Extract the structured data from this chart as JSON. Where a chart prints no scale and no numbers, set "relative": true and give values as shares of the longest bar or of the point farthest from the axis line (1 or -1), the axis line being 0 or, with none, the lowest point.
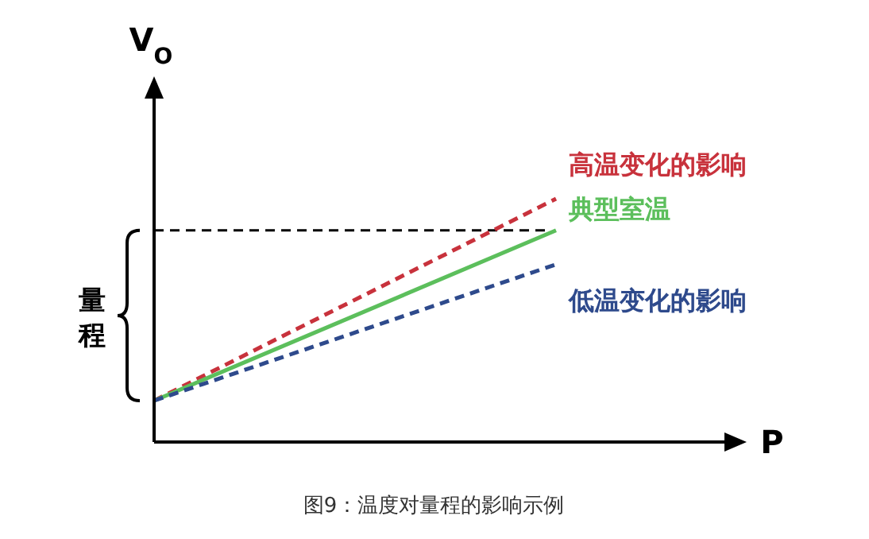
{
  "chart_data": {
    "type": "line",
    "title": "图9：温度对量程的影响示例",
    "xlabel": "P",
    "ylabel": "V$_{O}$",
    "relative": true,
    "categories": [
      null,
      null
    ],
    "series": [
      {
        "name": "高温变化的影响",
        "color": "#c8323c",
        "values": [
          0.17,
          1
        ],
        "line_style": "dashed"
      },
      {
        "name": "典型室温",
        "color": "#5cbf5c",
        "values": [
          0.17,
          0.87
        ],
        "line_style": "solid"
      },
      {
        "name": "低温变化的影响",
        "color": "#2e4a8c",
        "values": [
          0.17,
          0.73
        ],
        "line_style": "dashed"
      }
    ],
    "ref_lines": [
      {
        "axis": "y",
        "value": 0.87,
        "color": "#000000",
        "line_style": "dashed"
      }
    ],
    "annotations": [
      "量程"
    ],
    "grid": false
  }
}
